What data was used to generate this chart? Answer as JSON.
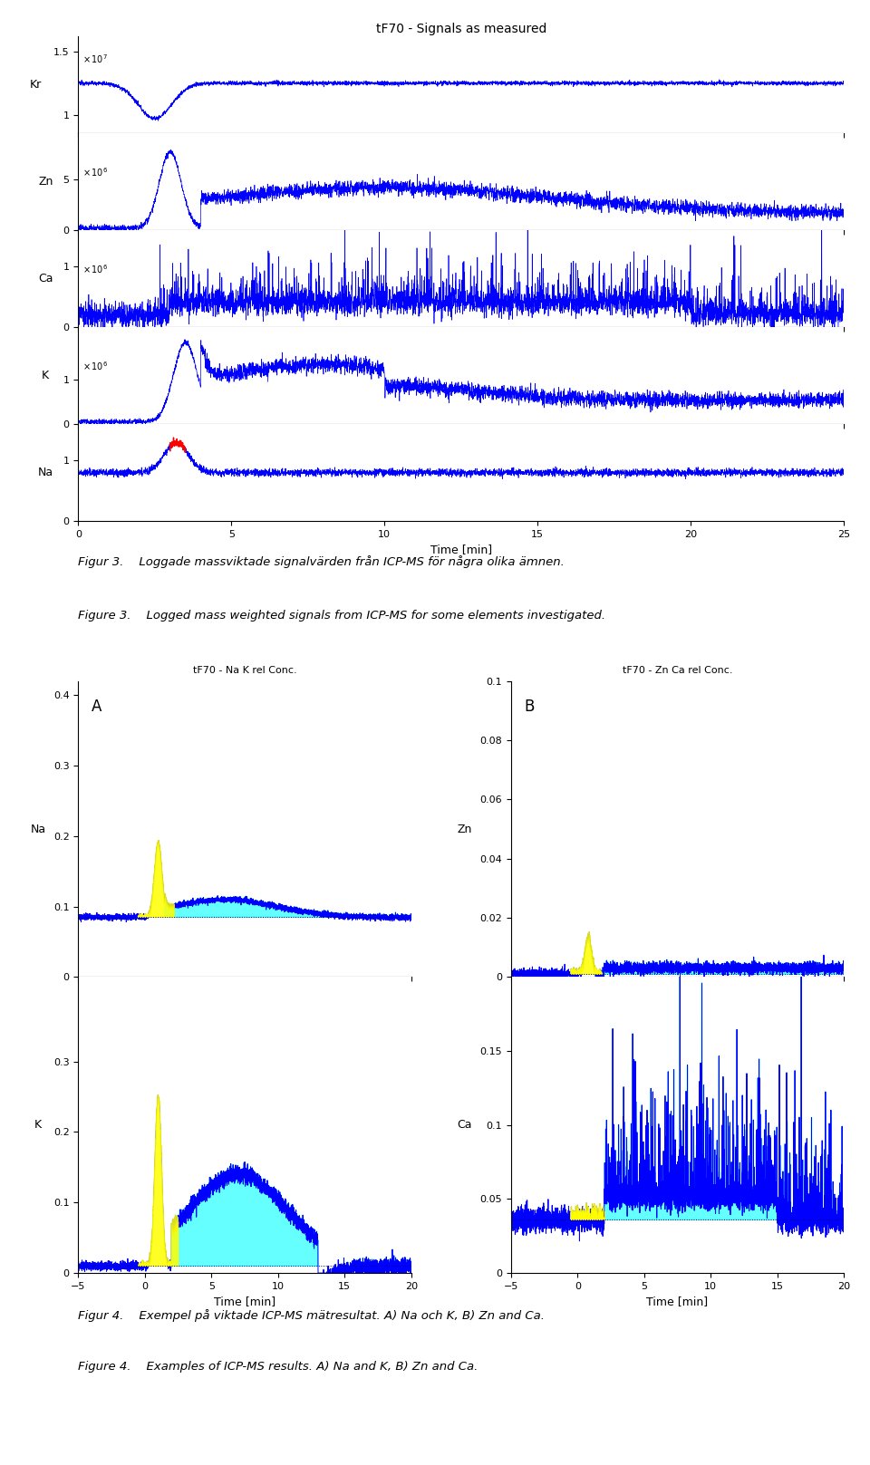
{
  "fig_width": 9.6,
  "fig_height": 16.17,
  "top_title": "tF70 - Signals as measured",
  "top_xlabel": "Time [min]",
  "bottom_title_left": "tF70 - Na K rel Conc.",
  "bottom_title_right": "tF70 - Zn Ca rel Conc.",
  "bottom_xlabel": "Time [min]",
  "fig3_caption_sv": "Figur 3.    Loggade massviktade signalvärden från ICP-MS för några olika ämnen.",
  "fig3_caption_en": "Figure 3.    Logged mass weighted signals from ICP-MS for some elements investigated.",
  "fig4_caption_sv": "Figur 4.    Exempel på viktade ICP-MS mätresultat. A) Na och K, B) Zn and Ca.",
  "fig4_caption_en": "Figure 4.    Examples of ICP-MS results. A) Na and K, B) Zn and Ca.",
  "line_color": "#0000FF",
  "fill_cyan": "#00FFFF",
  "fill_yellow": "#FFFF00"
}
